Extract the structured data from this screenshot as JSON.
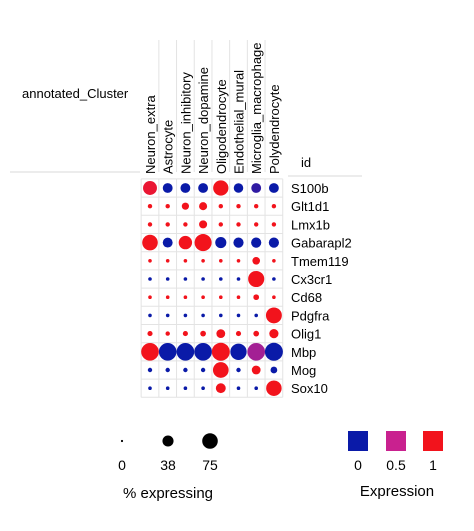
{
  "chart_data": {
    "type": "dotplot",
    "row_annotation_label": "annotated_Cluster",
    "id_column_label": "id",
    "clusters": [
      "Neuron_extra",
      "Astrocyte",
      "Neuron_inhibitory",
      "Neuron_dopamine",
      "Oligodendrocyte",
      "Endothelial_mural",
      "Microglia_macrophage",
      "Polydendrocyte"
    ],
    "genes": [
      "S100b",
      "Glt1d1",
      "Lmx1b",
      "Gabarapl2",
      "Tmem119",
      "Cx3cr1",
      "Cd68",
      "Pdgfra",
      "Olig1",
      "Mbp",
      "Mog",
      "Sox10"
    ],
    "pct_expressing": [
      [
        60,
        30,
        30,
        30,
        72,
        28,
        30,
        30
      ],
      [
        6,
        6,
        16,
        20,
        6,
        6,
        6,
        6
      ],
      [
        6,
        6,
        6,
        20,
        6,
        6,
        6,
        6
      ],
      [
        75,
        30,
        55,
        90,
        38,
        32,
        32,
        32
      ],
      [
        4,
        4,
        4,
        4,
        4,
        4,
        18,
        4
      ],
      [
        4,
        4,
        4,
        4,
        4,
        4,
        80,
        4
      ],
      [
        4,
        4,
        4,
        4,
        4,
        4,
        10,
        4
      ],
      [
        4,
        4,
        4,
        4,
        4,
        4,
        4,
        78
      ],
      [
        8,
        6,
        8,
        10,
        24,
        8,
        10,
        26
      ],
      [
        96,
        96,
        96,
        96,
        100,
        82,
        96,
        100
      ],
      [
        6,
        6,
        6,
        6,
        76,
        6,
        24,
        14
      ],
      [
        4,
        4,
        4,
        4,
        30,
        4,
        4,
        74
      ]
    ],
    "expression": [
      [
        0.9,
        0.0,
        0.0,
        0.0,
        1.0,
        0.0,
        0.1,
        0.0
      ],
      [
        1.0,
        1.0,
        1.0,
        1.0,
        1.0,
        1.0,
        1.0,
        1.0
      ],
      [
        1.0,
        1.0,
        1.0,
        1.0,
        1.0,
        1.0,
        1.0,
        1.0
      ],
      [
        1.0,
        0.0,
        1.0,
        1.0,
        0.0,
        0.0,
        0.0,
        0.0
      ],
      [
        1.0,
        1.0,
        1.0,
        1.0,
        1.0,
        1.0,
        1.0,
        1.0
      ],
      [
        0.0,
        0.0,
        0.0,
        0.0,
        0.0,
        0.0,
        1.0,
        0.0
      ],
      [
        1.0,
        1.0,
        1.0,
        1.0,
        1.0,
        1.0,
        1.0,
        1.0
      ],
      [
        0.0,
        0.0,
        0.0,
        0.0,
        0.0,
        0.0,
        0.0,
        1.0
      ],
      [
        1.0,
        1.0,
        1.0,
        1.0,
        1.0,
        1.0,
        1.0,
        1.0
      ],
      [
        1.0,
        0.0,
        0.0,
        0.0,
        1.0,
        0.0,
        0.4,
        0.0
      ],
      [
        0.0,
        0.0,
        0.0,
        0.0,
        1.0,
        0.0,
        1.0,
        0.0
      ],
      [
        0.0,
        0.0,
        0.0,
        0.0,
        1.0,
        0.0,
        0.0,
        1.0
      ]
    ],
    "size_legend": {
      "title": "% expressing",
      "values": [
        0,
        38,
        75
      ],
      "labels": [
        "0",
        "38",
        "75"
      ]
    },
    "color_legend": {
      "title": "Expression",
      "values": [
        0,
        0.5,
        1
      ],
      "labels": [
        "0",
        "0.5",
        "1"
      ]
    },
    "colors": {
      "low": "#0a1aa8",
      "mid": "#c9218f",
      "high": "#f2131c"
    },
    "legend_placement": "bottom",
    "grid": true
  }
}
